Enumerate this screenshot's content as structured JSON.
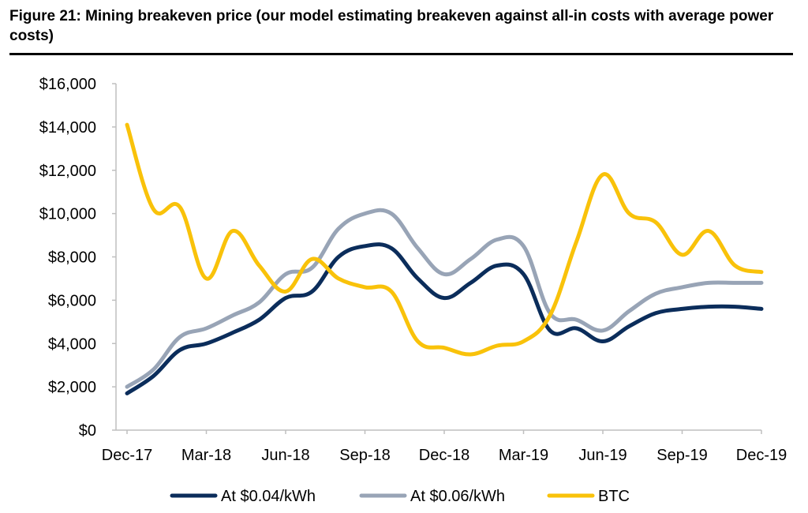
{
  "title": "Figure 21: Mining breakeven price (our model estimating breakeven against all-in costs with average power costs)",
  "chart_data": {
    "type": "line",
    "x": [
      "Dec-17",
      "Jan-18",
      "Feb-18",
      "Mar-18",
      "Apr-18",
      "May-18",
      "Jun-18",
      "Jul-18",
      "Aug-18",
      "Sep-18",
      "Oct-18",
      "Nov-18",
      "Dec-18",
      "Jan-19",
      "Feb-19",
      "Mar-19",
      "Apr-19",
      "May-19",
      "Jun-19",
      "Jul-19",
      "Aug-19",
      "Sep-19",
      "Oct-19",
      "Nov-19",
      "Dec-19"
    ],
    "x_tick_labels": [
      "Dec-17",
      "Mar-18",
      "Jun-18",
      "Sep-18",
      "Dec-18",
      "Mar-19",
      "Jun-19",
      "Sep-19",
      "Dec-19"
    ],
    "y_tick_labels": [
      "$0",
      "$2,000",
      "$4,000",
      "$6,000",
      "$8,000",
      "$10,000",
      "$12,000",
      "$14,000",
      "$16,000"
    ],
    "ylim": [
      0,
      16000
    ],
    "grid": false,
    "legend_position": "bottom",
    "series": [
      {
        "name": "At $0.04/kWh",
        "color": "#0b2d5b",
        "values": [
          1700,
          2500,
          3700,
          4000,
          4500,
          5100,
          6100,
          6400,
          8000,
          8500,
          8400,
          7000,
          6100,
          6800,
          7600,
          7200,
          4600,
          4700,
          4100,
          4800,
          5400,
          5600,
          5700,
          5700,
          5600
        ]
      },
      {
        "name": "At $0.06/kWh",
        "color": "#98a4b6",
        "values": [
          2000,
          2800,
          4300,
          4700,
          5300,
          5900,
          7200,
          7500,
          9300,
          10000,
          10000,
          8400,
          7200,
          7900,
          8800,
          8500,
          5400,
          5100,
          4600,
          5500,
          6300,
          6600,
          6800,
          6800,
          6800
        ]
      },
      {
        "name": "BTC",
        "color": "#f9c20a",
        "values": [
          14100,
          10200,
          10300,
          7000,
          9200,
          7600,
          6400,
          7900,
          7000,
          6600,
          6400,
          4100,
          3800,
          3500,
          3900,
          4100,
          5300,
          8700,
          11800,
          10000,
          9600,
          8100,
          9200,
          7600,
          7300
        ]
      }
    ]
  }
}
